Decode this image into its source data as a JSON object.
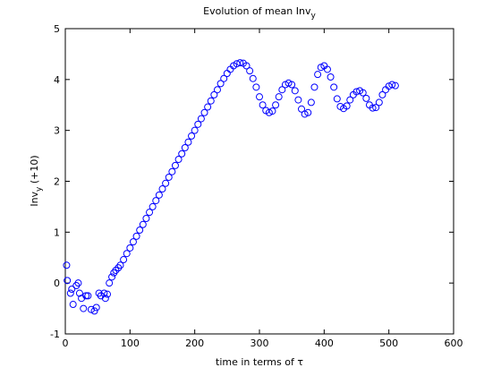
{
  "chart_data": {
    "type": "scatter",
    "title": {
      "text": "Evolution of mean Inv",
      "sub": "y"
    },
    "x_label": "time in terms of τ",
    "y_label": {
      "text": "Inv",
      "sub": "y",
      "suffix": " (+10)"
    },
    "color": "#0000ff",
    "xlim": [
      0,
      600
    ],
    "xticks": [
      0,
      100,
      200,
      300,
      400,
      500,
      600
    ],
    "ylim": [
      -1,
      5
    ],
    "yticks": [
      -1,
      0,
      1,
      2,
      3,
      4,
      5
    ],
    "x": [
      2,
      3,
      8,
      10,
      12,
      17,
      20,
      22,
      25,
      28,
      32,
      35,
      40,
      45,
      48,
      52,
      55,
      60,
      62,
      65,
      68,
      72,
      75,
      78,
      82,
      85,
      90,
      95,
      100,
      105,
      110,
      115,
      120,
      125,
      130,
      135,
      140,
      145,
      150,
      155,
      160,
      165,
      170,
      175,
      180,
      185,
      190,
      195,
      200,
      205,
      210,
      215,
      220,
      225,
      230,
      235,
      240,
      245,
      250,
      255,
      260,
      265,
      270,
      275,
      280,
      285,
      290,
      295,
      300,
      305,
      310,
      315,
      320,
      325,
      330,
      335,
      340,
      345,
      350,
      355,
      360,
      365,
      370,
      375,
      380,
      385,
      390,
      395,
      400,
      405,
      410,
      415,
      420,
      425,
      430,
      435,
      440,
      445,
      450,
      455,
      460,
      465,
      470,
      475,
      480,
      485,
      490,
      495,
      500,
      505,
      510
    ],
    "values": [
      0.35,
      0.05,
      -0.2,
      -0.12,
      -0.42,
      -0.05,
      0.0,
      -0.2,
      -0.3,
      -0.5,
      -0.25,
      -0.25,
      -0.52,
      -0.55,
      -0.48,
      -0.2,
      -0.25,
      -0.2,
      -0.3,
      -0.22,
      0.0,
      0.12,
      0.2,
      0.25,
      0.3,
      0.35,
      0.46,
      0.58,
      0.69,
      0.81,
      0.92,
      1.04,
      1.15,
      1.27,
      1.39,
      1.5,
      1.62,
      1.73,
      1.85,
      1.96,
      2.08,
      2.19,
      2.31,
      2.43,
      2.54,
      2.66,
      2.77,
      2.89,
      3.0,
      3.12,
      3.23,
      3.35,
      3.46,
      3.58,
      3.7,
      3.8,
      3.92,
      4.02,
      4.12,
      4.2,
      4.27,
      4.31,
      4.33,
      4.32,
      4.27,
      4.17,
      4.02,
      3.85,
      3.66,
      3.5,
      3.39,
      3.35,
      3.38,
      3.5,
      3.66,
      3.8,
      3.9,
      3.93,
      3.9,
      3.78,
      3.6,
      3.42,
      3.32,
      3.35,
      3.55,
      3.85,
      4.1,
      4.24,
      4.27,
      4.2,
      4.05,
      3.85,
      3.62,
      3.47,
      3.43,
      3.48,
      3.6,
      3.7,
      3.76,
      3.78,
      3.74,
      3.63,
      3.5,
      3.44,
      3.45,
      3.55,
      3.7,
      3.8,
      3.87,
      3.9,
      3.88
    ]
  }
}
